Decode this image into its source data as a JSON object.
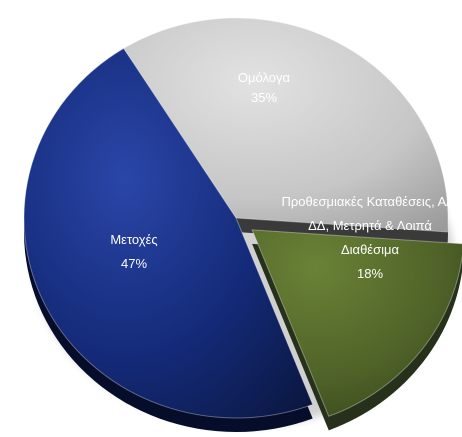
{
  "chart_data": {
    "type": "pie",
    "title": "",
    "legend": "none",
    "slices": [
      {
        "label_lines": [
          "Ομόλογα",
          "35%"
        ],
        "value": 35,
        "color": "#c8c8c8"
      },
      {
        "label_lines": [
          "Προθεσμιακές Καταθέσεις, Α/Κ",
          "ΔΔ, Μετρητά & Λοιπά",
          "Διαθέσιμα",
          "18%"
        ],
        "value": 18,
        "color": "#4f6228"
      },
      {
        "label_lines": [
          "Μετοχές",
          "47%"
        ],
        "value": 47,
        "color": "#142a78"
      }
    ]
  }
}
